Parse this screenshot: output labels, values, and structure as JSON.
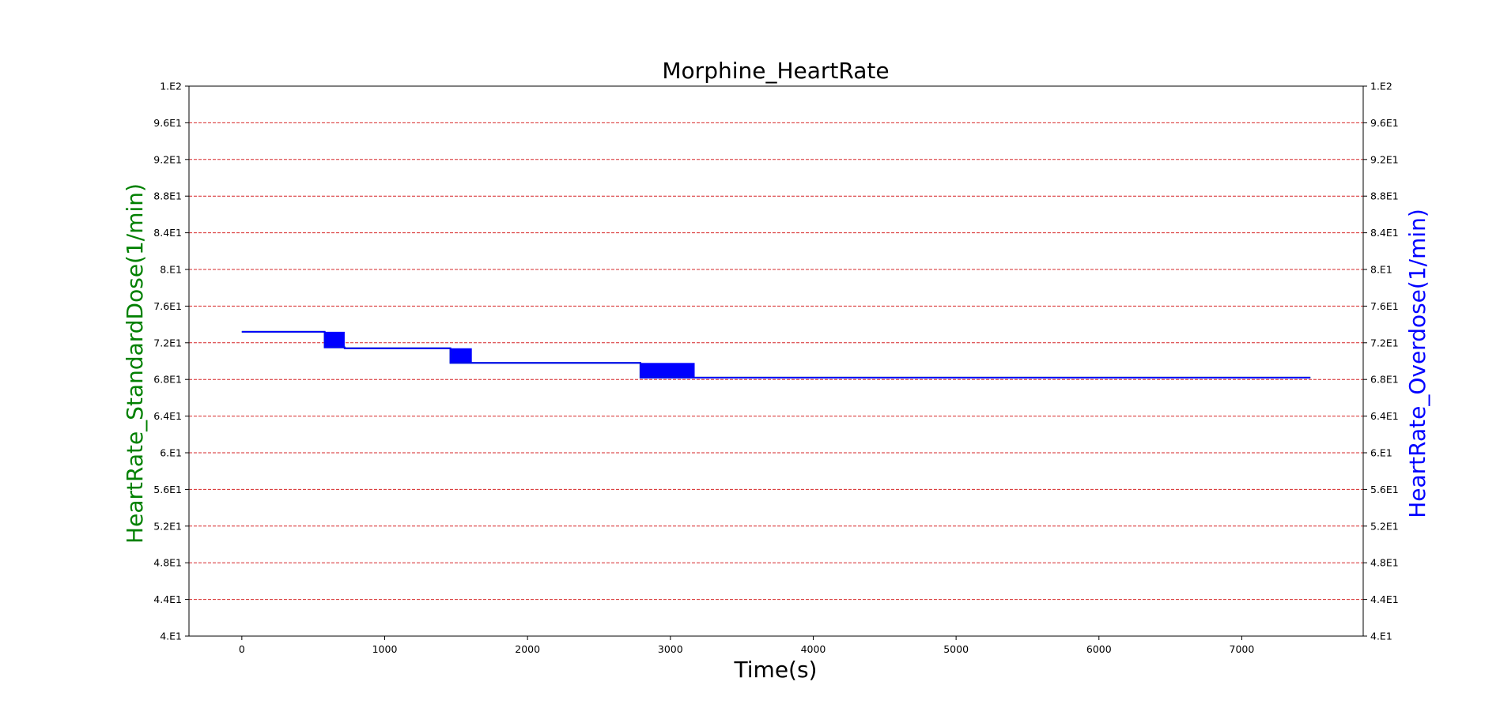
{
  "chart_data": {
    "type": "line",
    "title": "Morphine_HeartRate",
    "xlabel": "Time(s)",
    "ylabel_left": "HeartRate_StandardDose(1/min)",
    "ylabel_right": "HeartRate_Overdose(1/min)",
    "xlim": [
      -370,
      7850
    ],
    "ylim": [
      40,
      100
    ],
    "x_ticks": [
      0,
      1000,
      2000,
      3000,
      4000,
      5000,
      6000,
      7000
    ],
    "x_tick_labels": [
      "0",
      "1000",
      "2000",
      "3000",
      "4000",
      "5000",
      "6000",
      "7000"
    ],
    "y_ticks": [
      40,
      44,
      48,
      52,
      56,
      60,
      64,
      68,
      72,
      76,
      80,
      84,
      88,
      92,
      96,
      100
    ],
    "y_tick_labels": [
      "4.E1",
      "4.4E1",
      "4.8E1",
      "5.2E1",
      "5.6E1",
      "6.E1",
      "6.4E1",
      "6.8E1",
      "7.2E1",
      "7.6E1",
      "8.E1",
      "8.4E1",
      "8.8E1",
      "9.2E1",
      "9.6E1",
      "1.E2"
    ],
    "grid": {
      "axis": "y",
      "style": "dashed",
      "color": "#d62728"
    },
    "legend": "none",
    "series": [
      {
        "color": "#008000",
        "axis": "left",
        "x": [
          0,
          580,
          580,
          720,
          720,
          1460,
          1460,
          1610,
          1610,
          2790,
          2790,
          3170,
          3170,
          7480
        ],
        "y": [
          73.2,
          73.2,
          71.5,
          71.5,
          71.4,
          71.4,
          69.8,
          69.8,
          69.8,
          69.8,
          68.2,
          68.2,
          68.2,
          68.2
        ]
      },
      {
        "color": "#0000ff",
        "axis": "right",
        "x": [
          0,
          580,
          580,
          720,
          720,
          1460,
          1460,
          1610,
          1610,
          2790,
          2790,
          3170,
          3170,
          7480
        ],
        "y": [
          73.2,
          73.2,
          71.5,
          71.5,
          71.4,
          71.4,
          69.8,
          69.8,
          69.8,
          69.8,
          68.2,
          68.2,
          68.2,
          68.2
        ]
      }
    ],
    "bands": [
      {
        "x0": 580,
        "x1": 720,
        "y0": 71.5,
        "y1": 73.2,
        "color": "#0000ff"
      },
      {
        "x0": 1460,
        "x1": 1610,
        "y0": 69.8,
        "y1": 71.4,
        "color": "#0000ff"
      },
      {
        "x0": 2790,
        "x1": 3170,
        "y0": 68.2,
        "y1": 69.8,
        "color": "#0000ff"
      }
    ],
    "colors": {
      "left_label": "#008000",
      "right_label": "#0000ff",
      "grid": "#d62728"
    }
  }
}
